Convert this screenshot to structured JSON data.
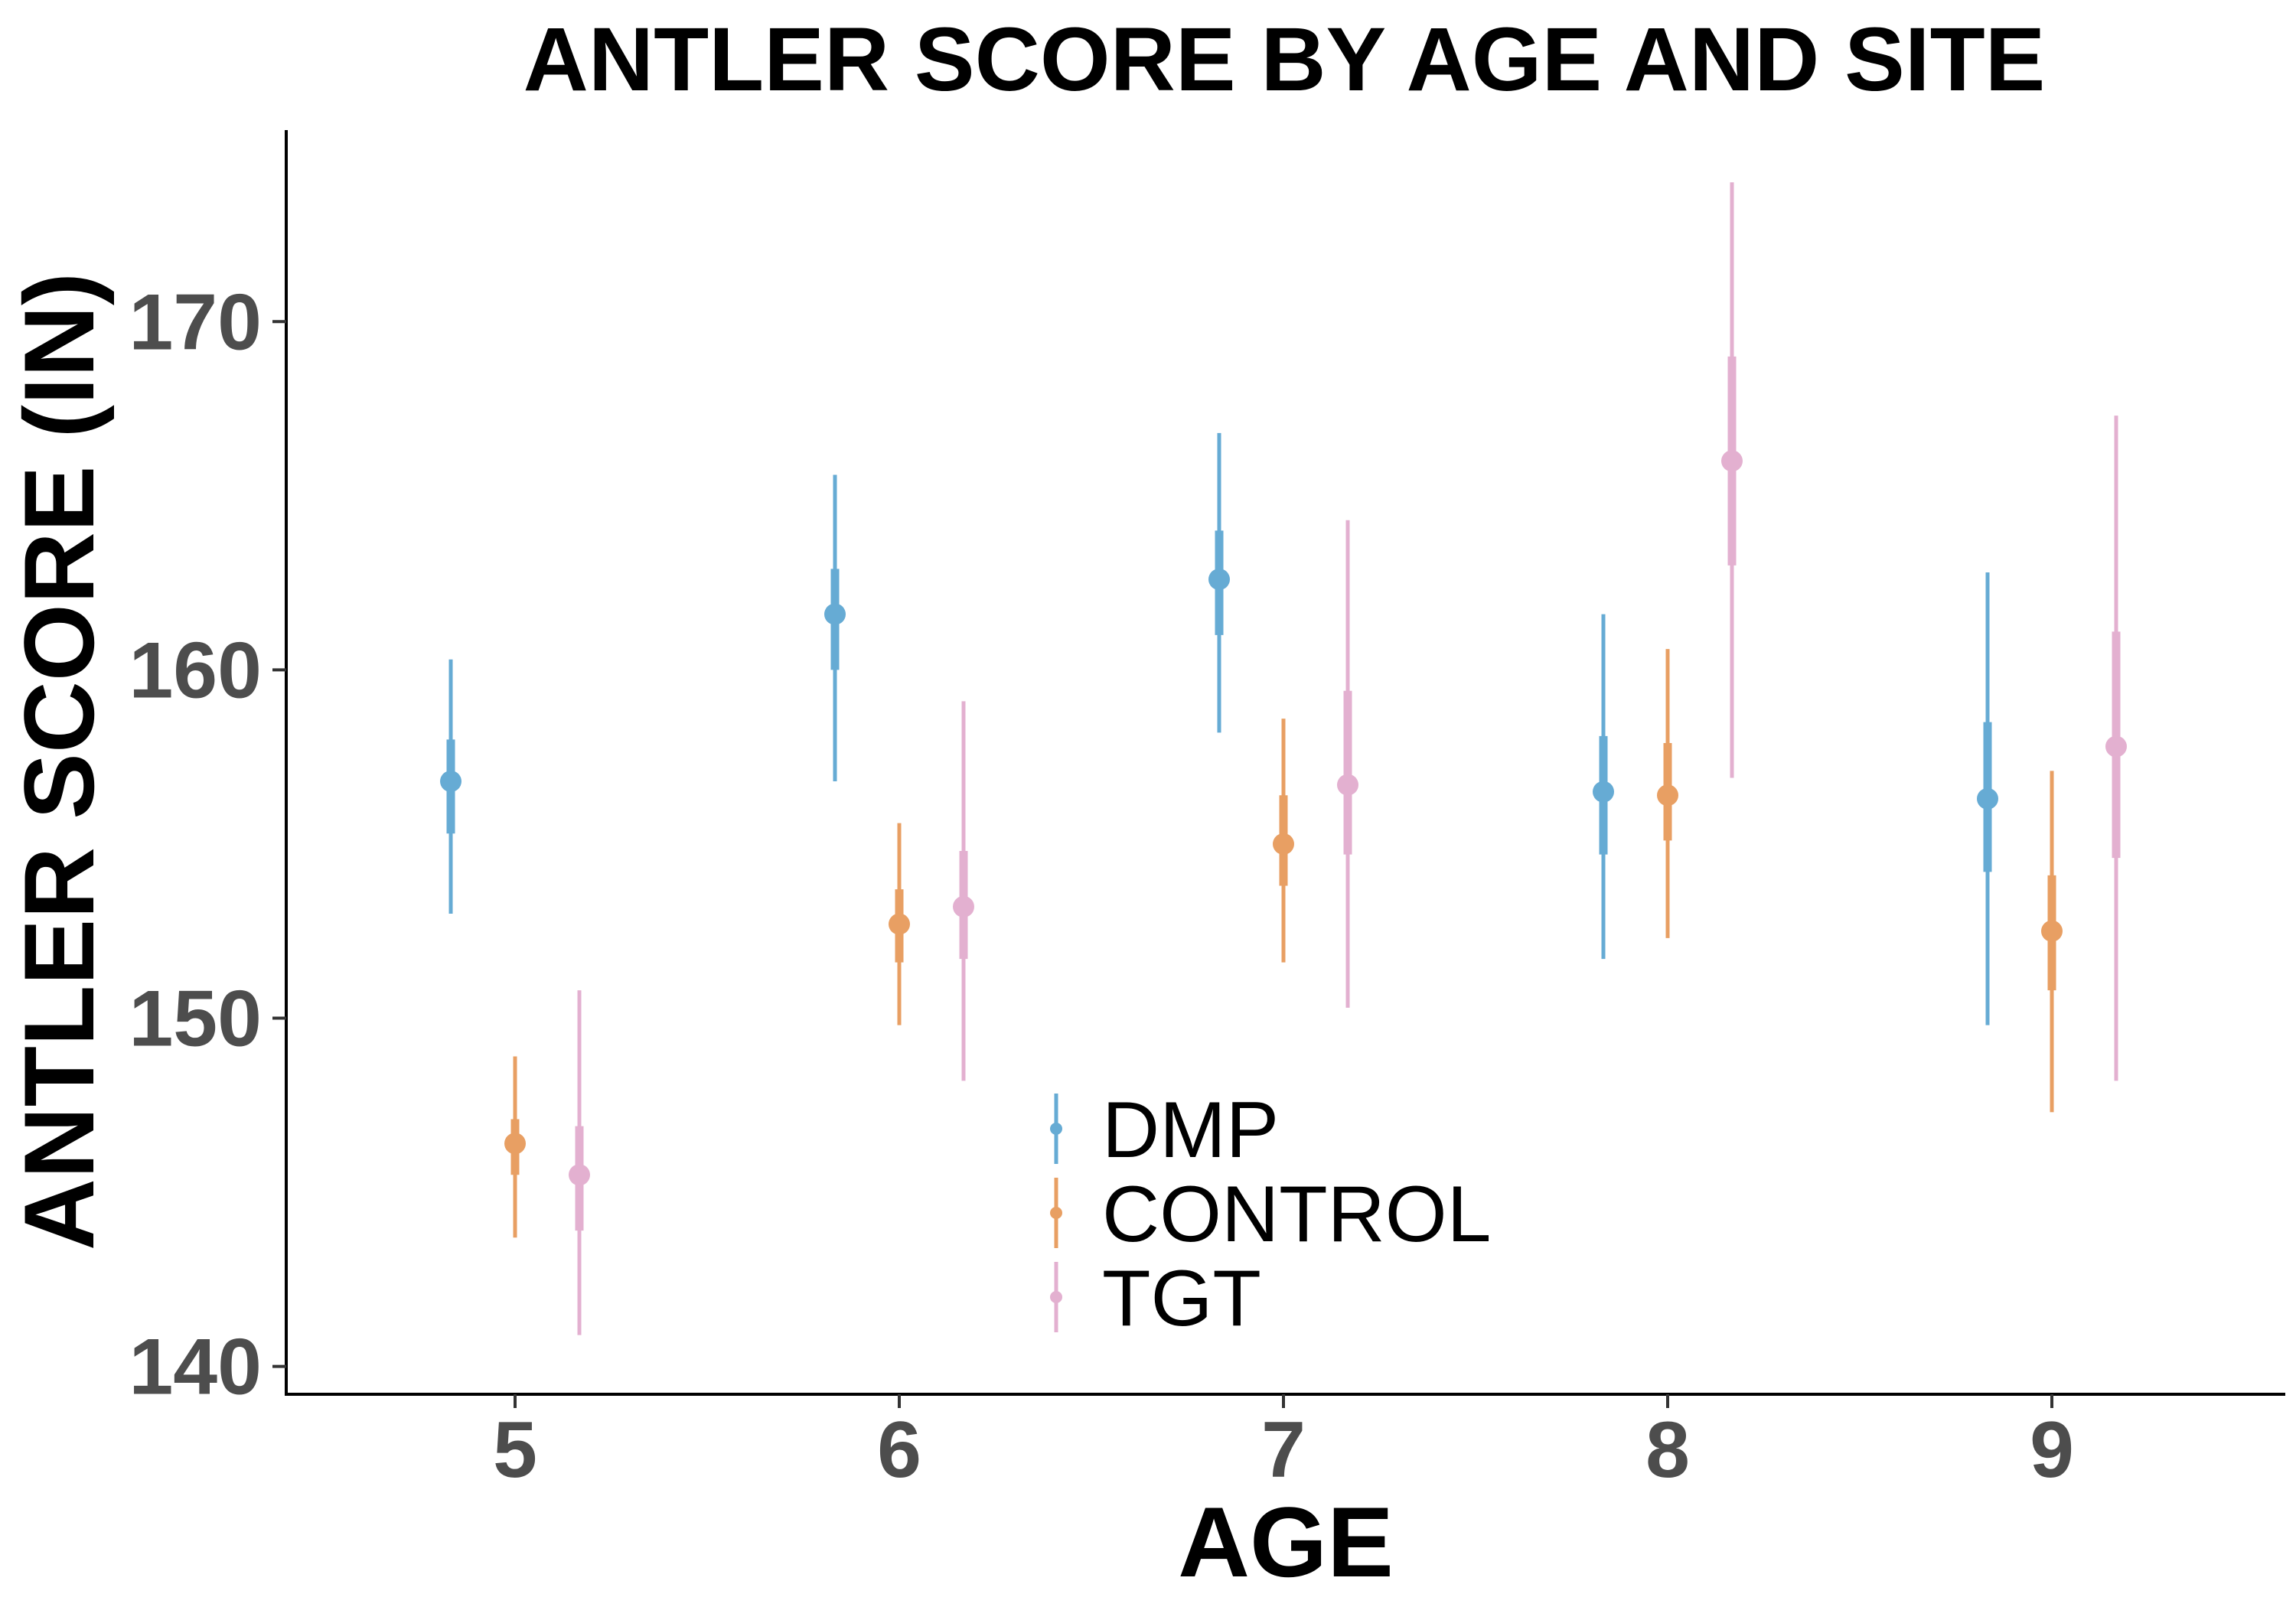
{
  "chart_data": {
    "type": "scatter",
    "title": "ANTLER SCORE BY AGE AND SITE",
    "xlabel": "AGE",
    "ylabel": "ANTLER SCORE (IN)",
    "x_categories": [
      "5",
      "6",
      "7",
      "8",
      "9"
    ],
    "y_ticks": [
      "140",
      "150",
      "160",
      "170"
    ],
    "ylim": [
      139.2,
      175.5
    ],
    "grid": false,
    "legend_position": "bottom-center",
    "series": [
      {
        "name": "DMP",
        "color": "#2c8bc4",
        "points": [
          {
            "age": "5",
            "mean": 156.8,
            "inner_low": 155.3,
            "inner_high": 158.0,
            "outer_low": 153.0,
            "outer_high": 160.3
          },
          {
            "age": "6",
            "mean": 161.6,
            "inner_low": 160.0,
            "inner_high": 162.9,
            "outer_low": 156.8,
            "outer_high": 165.6
          },
          {
            "age": "7",
            "mean": 162.6,
            "inner_low": 161.0,
            "inner_high": 164.0,
            "outer_low": 158.2,
            "outer_high": 166.8
          },
          {
            "age": "8",
            "mean": 156.5,
            "inner_low": 154.7,
            "inner_high": 158.1,
            "outer_low": 151.7,
            "outer_high": 161.6
          },
          {
            "age": "9",
            "mean": 156.3,
            "inner_low": 154.2,
            "inner_high": 158.5,
            "outer_low": 149.8,
            "outer_high": 162.8
          }
        ]
      },
      {
        "name": "CONTROL",
        "color": "#e07b28",
        "points": [
          {
            "age": "5",
            "mean": 146.4,
            "inner_low": 145.5,
            "inner_high": 147.1,
            "outer_low": 143.7,
            "outer_high": 148.9
          },
          {
            "age": "6",
            "mean": 152.7,
            "inner_low": 151.6,
            "inner_high": 153.7,
            "outer_low": 149.8,
            "outer_high": 155.6
          },
          {
            "age": "7",
            "mean": 155.0,
            "inner_low": 153.8,
            "inner_high": 156.4,
            "outer_low": 151.6,
            "outer_high": 158.6
          },
          {
            "age": "8",
            "mean": 156.4,
            "inner_low": 155.1,
            "inner_high": 157.9,
            "outer_low": 152.3,
            "outer_high": 160.6
          },
          {
            "age": "9",
            "mean": 152.5,
            "inner_low": 150.8,
            "inner_high": 154.1,
            "outer_low": 147.3,
            "outer_high": 157.1
          }
        ]
      },
      {
        "name": "TGT",
        "color": "#d993bf",
        "points": [
          {
            "age": "5",
            "mean": 145.5,
            "inner_low": 143.9,
            "inner_high": 146.9,
            "outer_low": 140.9,
            "outer_high": 150.8
          },
          {
            "age": "6",
            "mean": 153.2,
            "inner_low": 151.7,
            "inner_high": 154.8,
            "outer_low": 148.2,
            "outer_high": 159.1
          },
          {
            "age": "7",
            "mean": 156.7,
            "inner_low": 154.7,
            "inner_high": 159.4,
            "outer_low": 150.3,
            "outer_high": 164.3
          },
          {
            "age": "8",
            "mean": 166.0,
            "inner_low": 163.0,
            "inner_high": 169.0,
            "outer_low": 156.9,
            "outer_high": 174.0
          },
          {
            "age": "9",
            "mean": 157.8,
            "inner_low": 154.6,
            "inner_high": 161.1,
            "outer_low": 148.2,
            "outer_high": 167.3
          }
        ]
      }
    ]
  }
}
